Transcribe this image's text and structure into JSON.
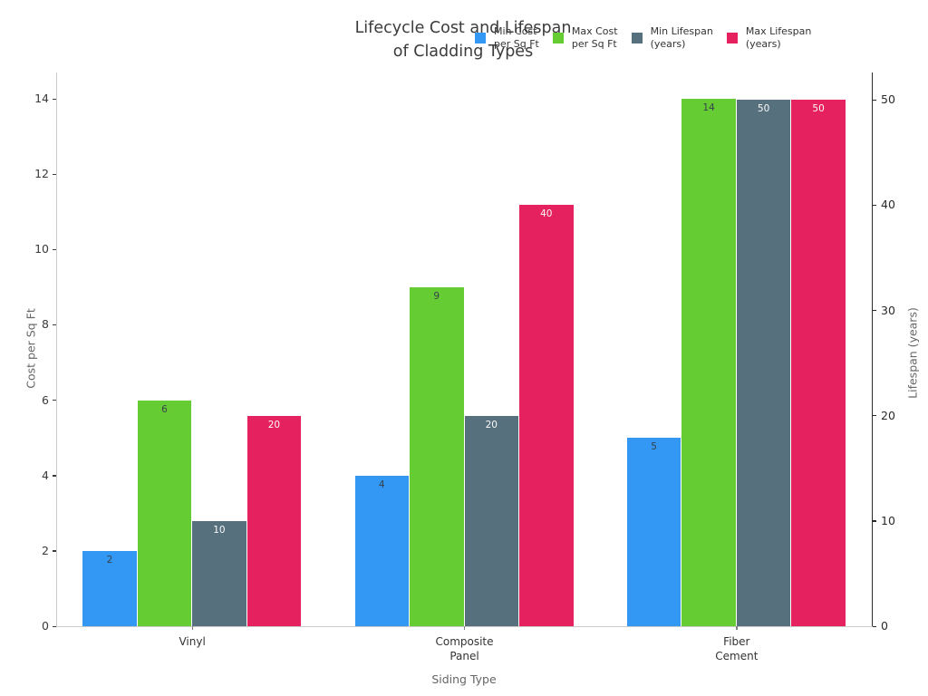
{
  "title": "Lifecycle Cost and Lifespan\nof Cladding Types",
  "legend": [
    {
      "name": "min-cost-swatch",
      "label": "Min Cost\nper Sq Ft",
      "color": "#3398f4"
    },
    {
      "name": "max-cost-swatch",
      "label": "Max Cost\nper Sq Ft",
      "color": "#66cc33"
    },
    {
      "name": "min-lifespan-swatch",
      "label": "Min Lifespan\n(years)",
      "color": "#56707e"
    },
    {
      "name": "max-lifespan-swatch",
      "label": "Max Lifespan\n(years)",
      "color": "#e6215f"
    }
  ],
  "chart_data": {
    "type": "bar",
    "title": "Lifecycle Cost and Lifespan of Cladding Types",
    "categories": [
      "Vinyl",
      "Composite Panel",
      "Fiber Cement"
    ],
    "category_display": [
      "Vinyl",
      "Composite\nPanel",
      "Fiber\nCement"
    ],
    "xlabel": "Siding Type",
    "grid": false,
    "legend_position": "top",
    "left_axis": {
      "label": "Cost per Sq Ft",
      "ticks": [
        0,
        2,
        4,
        6,
        8,
        10,
        12,
        14
      ],
      "max": 14.7
    },
    "right_axis": {
      "label": "Lifespan (years)",
      "ticks": [
        0,
        10,
        20,
        30,
        40,
        50
      ],
      "max": 52.6
    },
    "series": [
      {
        "key": "min-cost",
        "name": "Min Cost per Sq Ft",
        "axis": "left",
        "color": "#3398f4",
        "label_color": "#37424a",
        "values": [
          2,
          4,
          5
        ]
      },
      {
        "key": "max-cost",
        "name": "Max Cost per Sq Ft",
        "axis": "left",
        "color": "#66cc33",
        "label_color": "#37424a",
        "values": [
          6,
          9,
          14
        ]
      },
      {
        "key": "min-lifespan",
        "name": "Min Lifespan (years)",
        "axis": "right",
        "color": "#56707e",
        "label_color": "#fafafa",
        "values": [
          10,
          20,
          50
        ]
      },
      {
        "key": "max-lifespan",
        "name": "Max Lifespan (years)",
        "axis": "right",
        "color": "#e6215f",
        "label_color": "#fafafa",
        "values": [
          20,
          40,
          50
        ]
      }
    ]
  }
}
